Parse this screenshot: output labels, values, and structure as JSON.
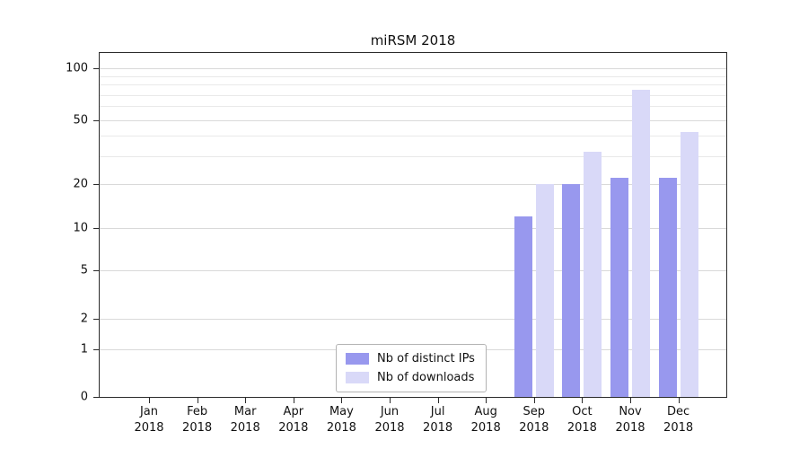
{
  "chart_data": {
    "type": "bar",
    "title": "miRSM 2018",
    "categories": [
      "Jan 2018",
      "Feb 2018",
      "Mar 2018",
      "Apr 2018",
      "May 2018",
      "Jun 2018",
      "Jul 2018",
      "Aug 2018",
      "Sep 2018",
      "Oct 2018",
      "Nov 2018",
      "Dec 2018"
    ],
    "series": [
      {
        "name": "Nb of distinct IPs",
        "color": "#9898ee",
        "values": [
          0,
          0,
          0,
          0,
          0,
          0,
          0,
          0,
          12,
          20,
          22,
          22
        ]
      },
      {
        "name": "Nb of downloads",
        "color": "#d9d9f8",
        "values": [
          0,
          0,
          0,
          0,
          0,
          0,
          0,
          0,
          20,
          32,
          75,
          42
        ]
      }
    ],
    "yscale": "symlog",
    "yticks": [
      0,
      1,
      2,
      5,
      10,
      20,
      50,
      100
    ],
    "yticks_minor": [
      30,
      40,
      60,
      70,
      80,
      90
    ],
    "ylim": [
      0,
      110
    ],
    "grid": "horizontal",
    "legend_position": "lower center"
  }
}
